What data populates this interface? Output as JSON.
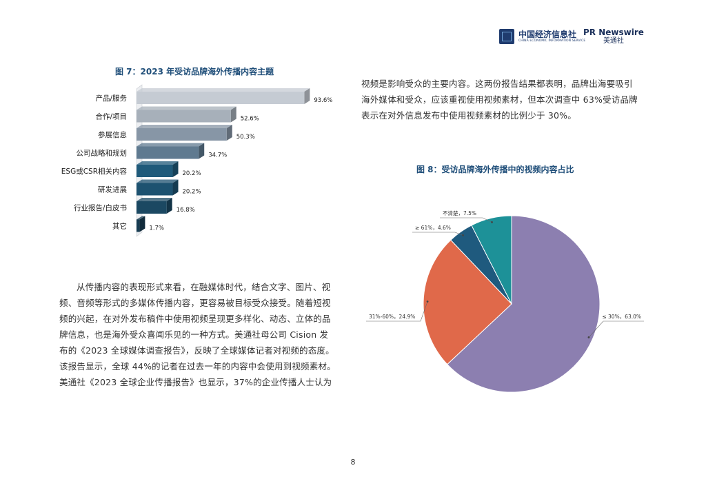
{
  "header": {
    "logo_cei_cn": "中国经济信息社",
    "logo_cei_en": "CHINA ECONOMIC INFORMATION SERVICE",
    "logo_prn_en": "PR Newswire",
    "logo_prn_cn": "美通社"
  },
  "figure7": {
    "title": "图 7：2023 年受访品牌海外传播内容主题",
    "chart_data": {
      "type": "bar",
      "orientation": "horizontal",
      "title": "图 7：2023 年受访品牌海外传播内容主题",
      "categories": [
        "产品/服务",
        "合作/项目",
        "参展信息",
        "公司战略和规划",
        "ESG或CSR相关内容",
        "研发进展",
        "行业报告/白皮书",
        "其它"
      ],
      "values": [
        93.6,
        52.6,
        50.3,
        34.7,
        20.2,
        20.2,
        16.8,
        1.7
      ],
      "value_labels": [
        "93.6%",
        "52.6%",
        "50.3%",
        "34.7%",
        "20.2%",
        "20.2%",
        "16.8%",
        "1.7%"
      ],
      "colors": [
        "#c5cbd3",
        "#a7b0ba",
        "#8796a6",
        "#5f7a90",
        "#1f5a7a",
        "#1d5270",
        "#1b4862",
        "#173c52"
      ],
      "xlim": [
        0,
        100
      ],
      "grid": false
    }
  },
  "figure8": {
    "title": "图 8：受访品牌海外传播中的视频内容占比",
    "chart_data": {
      "type": "pie",
      "title": "图 8：受访品牌海外传播中的视频内容占比",
      "categories": [
        "≤ 30%",
        "31%-60%",
        "≥ 61%",
        "不清楚"
      ],
      "values": [
        63.0,
        24.9,
        4.6,
        7.5
      ],
      "labels": [
        "≤ 30%，63.0%",
        "31%-60%，24.9%",
        "≥ 61%，4.6%",
        "不清楚，7.5%"
      ],
      "colors": [
        "#8c7fb0",
        "#e0694a",
        "#1f5a7e",
        "#1d9198"
      ]
    }
  },
  "paragraph_left": {
    "lines": [
      "从传播内容的表现形式来看，在融媒体时代，结合文字、图片、视",
      "频、音频等形式的多媒体传播内容，更容易被目标受众接受。随着短视",
      "频的兴起，在对外发布稿件中使用视频呈现更多样化、动态、立体的品",
      "牌信息，也是海外受众喜闻乐见的一种方式。美通社母公司 Cision 发",
      "布的《2023 全球媒体调查报告》，反映了全球媒体记者对视频的态度。",
      "该报告显示，全球 44%的记者在过去一年的内容中会使用到视频素材。",
      "美通社《2023 全球企业传播报告》也显示，37%的企业传播人士认为"
    ]
  },
  "paragraph_right": {
    "lines": [
      "视频是影响受众的主要内容。这两份报告结果都表明，品牌出海要吸引",
      "海外媒体和受众，应该重视使用视频素材，但本次调查中 63%受访品牌",
      "表示在对外信息发布中使用视频素材的比例少于 30%。"
    ]
  },
  "page_number": "8"
}
